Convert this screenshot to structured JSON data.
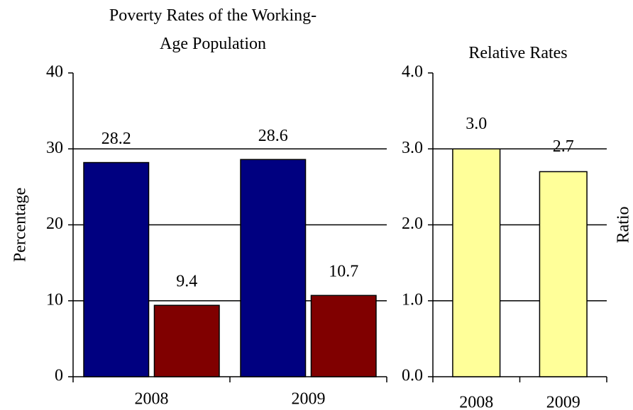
{
  "chart_data": [
    {
      "type": "bar",
      "title": "Poverty Rates of the Working-Age Population",
      "y_label": "Percentage",
      "categories": [
        "2008",
        "2009"
      ],
      "series": [
        {
          "color": "#000080",
          "values": [
            28.2,
            28.6
          ]
        },
        {
          "color": "#800000",
          "values": [
            9.4,
            10.7
          ]
        }
      ],
      "ylim": [
        0,
        40
      ],
      "yticks": [
        0,
        10,
        20,
        30,
        40
      ],
      "grid": true
    },
    {
      "type": "bar",
      "title": "Relative Rates",
      "y_label": "Ratio",
      "categories": [
        "2008",
        "2009"
      ],
      "values": [
        3.0,
        2.7
      ],
      "value_labels": [
        "3.0",
        "2.7"
      ],
      "color": "#ffff99",
      "ylim": [
        0,
        4
      ],
      "yticks": [
        {
          "value": 0,
          "label": "0.0"
        },
        {
          "value": 1,
          "label": "1.0"
        },
        {
          "value": 2,
          "label": "2.0"
        },
        {
          "value": 3,
          "label": "3.0"
        },
        {
          "value": 4,
          "label": "4.0"
        }
      ],
      "grid": true
    }
  ]
}
